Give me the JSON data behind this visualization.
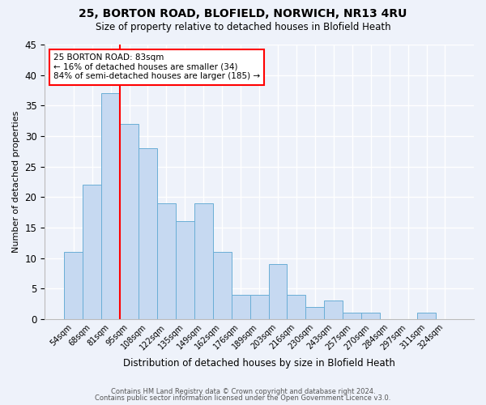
{
  "title1": "25, BORTON ROAD, BLOFIELD, NORWICH, NR13 4RU",
  "title2": "Size of property relative to detached houses in Blofield Heath",
  "xlabel": "Distribution of detached houses by size in Blofield Heath",
  "ylabel": "Number of detached properties",
  "footnote1": "Contains HM Land Registry data © Crown copyright and database right 2024.",
  "footnote2": "Contains public sector information licensed under the Open Government Licence v3.0.",
  "categories": [
    "54sqm",
    "68sqm",
    "81sqm",
    "95sqm",
    "108sqm",
    "122sqm",
    "135sqm",
    "149sqm",
    "162sqm",
    "176sqm",
    "189sqm",
    "203sqm",
    "216sqm",
    "230sqm",
    "243sqm",
    "257sqm",
    "270sqm",
    "284sqm",
    "297sqm",
    "311sqm",
    "324sqm"
  ],
  "values": [
    11,
    22,
    37,
    32,
    28,
    19,
    16,
    19,
    11,
    4,
    4,
    9,
    4,
    2,
    3,
    1,
    1,
    0,
    0,
    1,
    0
  ],
  "bar_color": "#c6d9f1",
  "bar_edge_color": "#6aaed6",
  "vline_color": "red",
  "vline_x_index": 2,
  "annotation_text": "25 BORTON ROAD: 83sqm\n← 16% of detached houses are smaller (34)\n84% of semi-detached houses are larger (185) →",
  "annotation_box_color": "white",
  "annotation_box_edge_color": "red",
  "ylim": [
    0,
    45
  ],
  "yticks": [
    0,
    5,
    10,
    15,
    20,
    25,
    30,
    35,
    40,
    45
  ],
  "background_color": "#eef2fa",
  "grid_color": "white"
}
